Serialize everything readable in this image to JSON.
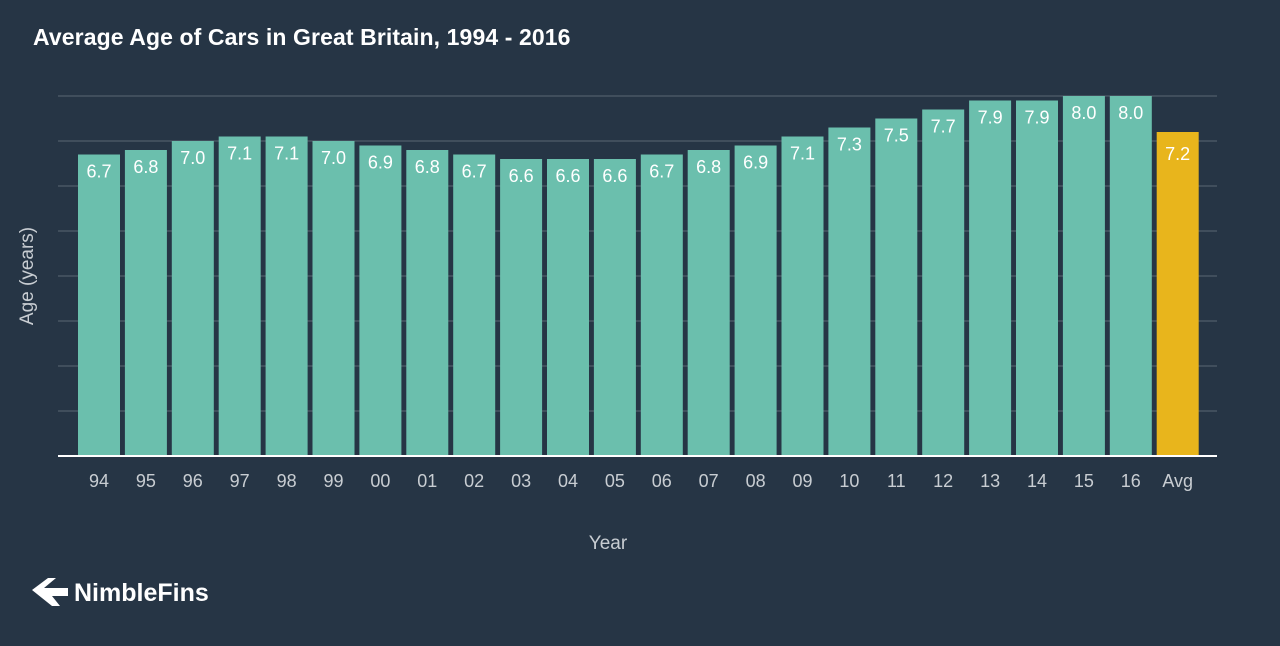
{
  "chart_data": {
    "type": "bar",
    "title": "Average Age of Cars in Great Britain, 1994 - 2016",
    "xlabel": "Year",
    "ylabel": "Age (years)",
    "categories": [
      "94",
      "95",
      "96",
      "97",
      "98",
      "99",
      "00",
      "01",
      "02",
      "03",
      "04",
      "05",
      "06",
      "07",
      "08",
      "09",
      "10",
      "11",
      "12",
      "13",
      "14",
      "15",
      "16",
      "Avg"
    ],
    "values": [
      6.7,
      6.8,
      7.0,
      7.1,
      7.1,
      7.0,
      6.9,
      6.8,
      6.7,
      6.6,
      6.6,
      6.6,
      6.7,
      6.8,
      6.9,
      7.1,
      7.3,
      7.5,
      7.7,
      7.9,
      7.9,
      8.0,
      8.0,
      7.2
    ],
    "value_labels": [
      "6.7",
      "6.8",
      "7.0",
      "7.1",
      "7.1",
      "7.0",
      "6.9",
      "6.8",
      "6.7",
      "6.6",
      "6.6",
      "6.6",
      "6.7",
      "6.8",
      "6.9",
      "7.1",
      "7.3",
      "7.5",
      "7.7",
      "7.9",
      "7.9",
      "8.0",
      "8.0",
      "7.2"
    ],
    "ylim": [
      0,
      8
    ],
    "grid": true,
    "colors": {
      "bar": "#6bbfad",
      "highlight": "#e8b51c",
      "background": "#263545",
      "grid": "#5a6672",
      "text": "#ffffff",
      "axis_text": "#c8cdd2"
    },
    "highlight_category": "Avg"
  },
  "brand": {
    "name": "NimbleFins",
    "logo_icon": "nimblefins-arrow-icon"
  }
}
